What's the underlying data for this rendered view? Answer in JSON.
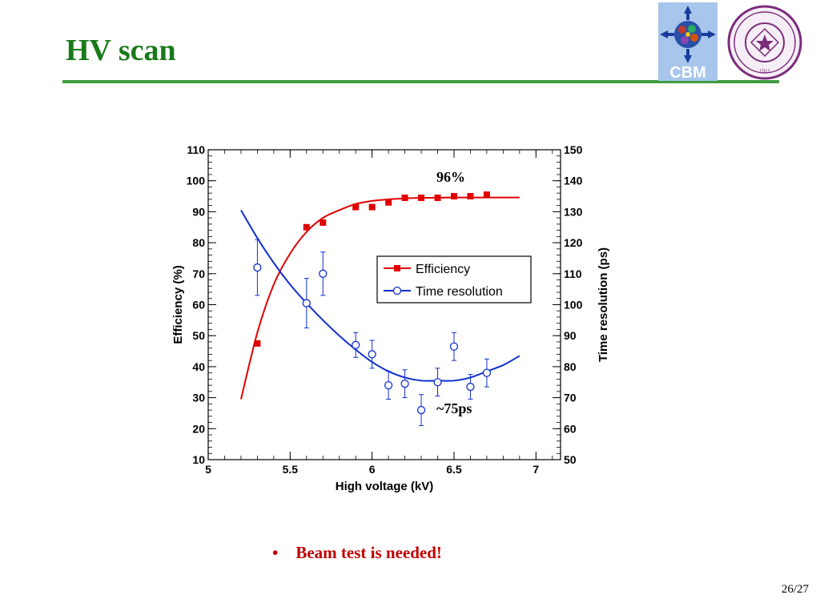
{
  "slide": {
    "title": "HV scan",
    "bullet": "Beam test is needed!",
    "bullet_marker": "•",
    "page_number": "26/27",
    "logos": {
      "left_text": "CBM",
      "seal_year": "1911"
    }
  },
  "chart_data": {
    "type": "scatter",
    "xlabel": "High voltage (kV)",
    "ylabel": "Efficiency (%)",
    "y2label": "Time resolution (ps)",
    "xlim": [
      5,
      7.15
    ],
    "ylim": [
      10,
      110
    ],
    "y2lim": [
      50,
      150
    ],
    "x_ticks": [
      "5",
      "5.5",
      "6",
      "6.5",
      "7"
    ],
    "y_ticks": [
      "10",
      "20",
      "30",
      "40",
      "50",
      "60",
      "70",
      "80",
      "90",
      "100",
      "110"
    ],
    "y2_ticks": [
      "50",
      "60",
      "70",
      "80",
      "90",
      "100",
      "110",
      "120",
      "130",
      "140",
      "150"
    ],
    "legend_position": "center-right",
    "annotations": [
      "96%",
      "~75ps"
    ],
    "series": [
      {
        "name": "Efficiency",
        "axis": "left",
        "color": "#e00000",
        "marker": "square",
        "x": [
          5.3,
          5.6,
          5.7,
          5.9,
          6.0,
          6.1,
          6.2,
          6.3,
          6.4,
          6.5,
          6.6,
          6.7
        ],
        "y": [
          47.5,
          85,
          86.5,
          91.5,
          91.5,
          93,
          94.5,
          94.5,
          94.5,
          95,
          95,
          95.5
        ],
        "fit_x": [
          5.2,
          5.3,
          5.4,
          5.5,
          5.6,
          5.7,
          5.8,
          5.9,
          6.0,
          6.1,
          6.2,
          6.3,
          6.4,
          6.5,
          6.6,
          6.7,
          6.8,
          6.9
        ],
        "fit_y": [
          29.5,
          51,
          66.5,
          76.5,
          83.5,
          88,
          90.5,
          92.5,
          93.5,
          94,
          94.3,
          94.5,
          94.5,
          94.6,
          94.6,
          94.6,
          94.6,
          94.6
        ]
      },
      {
        "name": "Time resolution",
        "axis": "right",
        "color": "#1030d0",
        "marker": "open-circle",
        "x": [
          5.3,
          5.6,
          5.7,
          5.9,
          6.0,
          6.1,
          6.2,
          6.3,
          6.4,
          6.5,
          6.6,
          6.7
        ],
        "y": [
          112,
          100.5,
          110,
          87,
          84,
          74,
          74.5,
          66,
          75,
          86.5,
          73.5,
          78
        ],
        "err": [
          9,
          8,
          7,
          4,
          4.5,
          4.5,
          4.5,
          5,
          4.5,
          4.5,
          4,
          4.5
        ],
        "fit_x": [
          5.2,
          5.3,
          5.4,
          5.5,
          5.6,
          5.7,
          5.8,
          5.9,
          6.0,
          6.1,
          6.2,
          6.3,
          6.4,
          6.5,
          6.6,
          6.7,
          6.8,
          6.9
        ],
        "fit_y": [
          130.5,
          121.5,
          113.5,
          106.5,
          100.5,
          95,
          90,
          85.5,
          81.5,
          78.5,
          76.5,
          75.5,
          75.5,
          75.5,
          76.5,
          78.5,
          80.5,
          83.5
        ]
      }
    ]
  }
}
